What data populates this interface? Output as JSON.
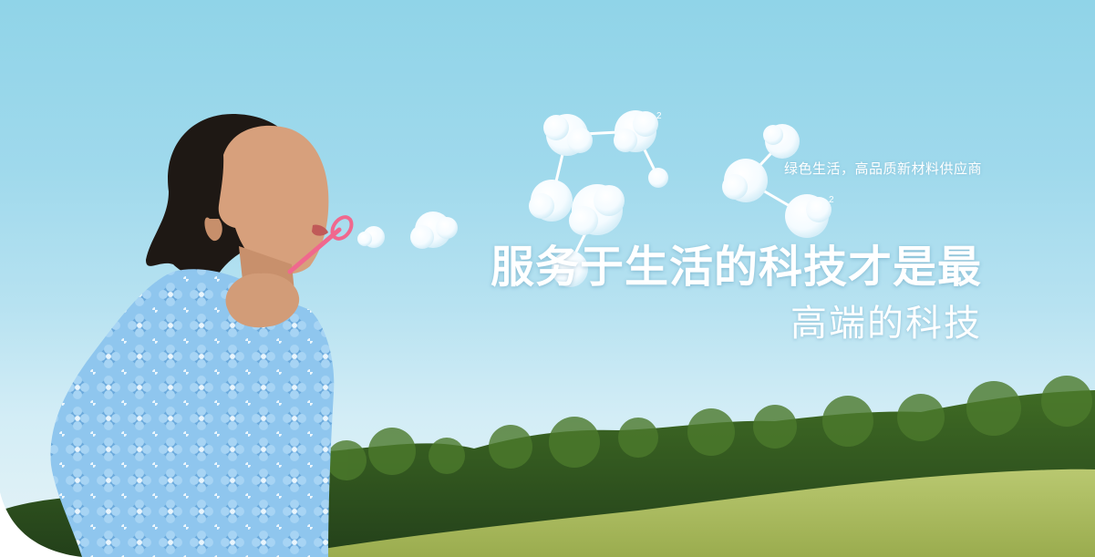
{
  "banner": {
    "tagline": "绿色生活，高品质新材料供应商",
    "headline": "服务于生活的科技才是最",
    "subline": "高端的科技",
    "molecule_labels": [
      "2",
      "2"
    ]
  },
  "colors": {
    "sky_top": "#90d4e8",
    "text": "#ffffff",
    "wand": "#f0688e",
    "dress": "#8ec6ec"
  }
}
